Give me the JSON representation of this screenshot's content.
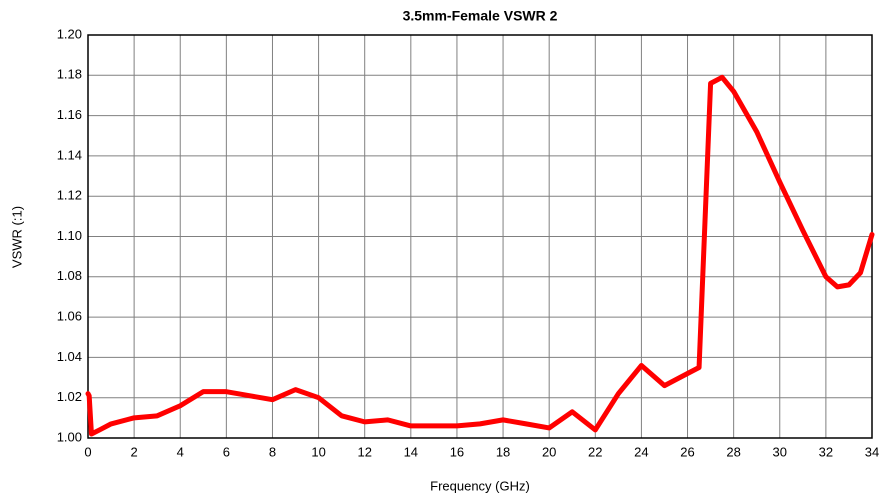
{
  "chart_data": {
    "type": "line",
    "title": "3.5mm-Female VSWR 2",
    "x_label": "Frequency (GHz)",
    "y_label": "VSWR (:1)",
    "x": [
      0,
      0.05,
      0.15,
      0.5,
      1,
      2,
      3,
      4,
      5,
      6,
      7,
      8,
      9,
      10,
      11,
      12,
      13,
      14,
      15,
      16,
      17,
      18,
      19,
      20,
      21,
      22,
      23,
      24,
      25,
      26,
      26.5,
      27,
      27.5,
      28,
      29,
      30,
      31,
      32,
      32.5,
      33,
      33.5,
      34
    ],
    "series": [
      {
        "name": "VSWR",
        "color": "#ff0000",
        "values": [
          1.022,
          1.021,
          1.002,
          1.004,
          1.007,
          1.01,
          1.011,
          1.016,
          1.023,
          1.023,
          1.021,
          1.019,
          1.024,
          1.02,
          1.011,
          1.008,
          1.009,
          1.006,
          1.006,
          1.006,
          1.007,
          1.009,
          1.007,
          1.005,
          1.013,
          1.004,
          1.022,
          1.036,
          1.026,
          1.032,
          1.035,
          1.176,
          1.179,
          1.172,
          1.152,
          1.127,
          1.103,
          1.08,
          1.075,
          1.076,
          1.082,
          1.101
        ]
      }
    ],
    "xlim": [
      0,
      34
    ],
    "xticks": [
      0,
      2,
      4,
      6,
      8,
      10,
      12,
      14,
      16,
      18,
      20,
      22,
      24,
      26,
      28,
      30,
      32,
      34
    ],
    "ylim": [
      1.0,
      1.2
    ],
    "yticks": [
      {
        "value": 1.0,
        "label": "1.00"
      },
      1.02,
      1.04,
      1.06,
      1.08,
      {
        "value": 1.1,
        "label": "1.10"
      },
      1.12,
      1.14,
      1.16,
      1.18,
      {
        "value": 1.2,
        "label": "1.20"
      }
    ],
    "grid": true
  }
}
